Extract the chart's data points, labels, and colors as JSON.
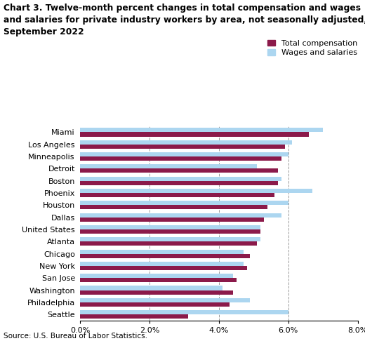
{
  "title_line1": "Chart 3. Twelve-month percent changes in total compensation and wages",
  "title_line2": "and salaries for private industry workers by area, not seasonally adjusted,",
  "title_line3": "September 2022",
  "cities": [
    "Miami",
    "Los Angeles",
    "Minneapolis",
    "Detroit",
    "Boston",
    "Phoenix",
    "Houston",
    "Dallas",
    "United States",
    "Atlanta",
    "Chicago",
    "New York",
    "San Jose",
    "Washington",
    "Philadelphia",
    "Seattle"
  ],
  "total_compensation": [
    6.6,
    5.9,
    5.8,
    5.7,
    5.7,
    5.6,
    5.4,
    5.3,
    5.2,
    5.1,
    4.9,
    4.8,
    4.5,
    4.4,
    4.3,
    3.1
  ],
  "wages_and_salaries": [
    7.0,
    6.1,
    6.0,
    5.1,
    5.8,
    6.7,
    6.0,
    5.8,
    5.2,
    5.2,
    4.7,
    4.7,
    4.4,
    4.1,
    4.9,
    6.0
  ],
  "color_total": "#8B1A4A",
  "color_wages": "#ACD6F0",
  "xlabel_ticks": [
    0.0,
    2.0,
    4.0,
    6.0,
    8.0
  ],
  "xlabel_labels": [
    "0.0%",
    "2.0%",
    "4.0%",
    "6.0%",
    "8.0%"
  ],
  "xlim": [
    0,
    8.0
  ],
  "source": "Source: U.S. Bureau of Labor Statistics.",
  "bar_height": 0.35,
  "title_fontsize": 8.8,
  "label_fontsize": 8,
  "tick_fontsize": 8,
  "legend_fontsize": 8
}
